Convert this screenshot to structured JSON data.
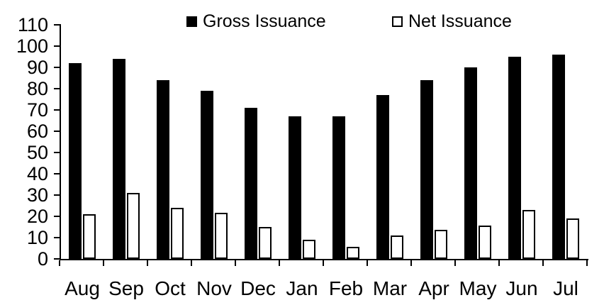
{
  "chart_data": {
    "type": "bar",
    "title": "",
    "xlabel": "",
    "ylabel": "",
    "categories": [
      "Aug",
      "Sep",
      "Oct",
      "Nov",
      "Dec",
      "Jan",
      "Feb",
      "Mar",
      "Apr",
      "May",
      "Jun",
      "Jul"
    ],
    "series": [
      {
        "name": "Gross Issuance",
        "fill": "#000000",
        "stroke": "#000000",
        "values": [
          92,
          94,
          84,
          79,
          71,
          67,
          67,
          77,
          84,
          90,
          95,
          96
        ]
      },
      {
        "name": "Net Issuance",
        "fill": "#ffffff",
        "stroke": "#000000",
        "values": [
          21,
          31,
          24,
          21.5,
          15,
          9,
          5.5,
          11,
          13.5,
          15.5,
          23,
          19
        ]
      }
    ],
    "ylim": [
      0,
      110
    ],
    "yticks": [
      0,
      10,
      20,
      30,
      40,
      50,
      60,
      70,
      80,
      90,
      100,
      110
    ],
    "grid": false,
    "legend_position": "top"
  },
  "legend": {
    "gross_label": "Gross Issuance",
    "net_label": "Net Issuance"
  },
  "colors": {
    "gross_bar": "#000000",
    "net_bar_fill": "#ffffff",
    "net_bar_outline": "#000000",
    "axis": "#000000",
    "text": "#000000",
    "background": "#ffffff"
  }
}
